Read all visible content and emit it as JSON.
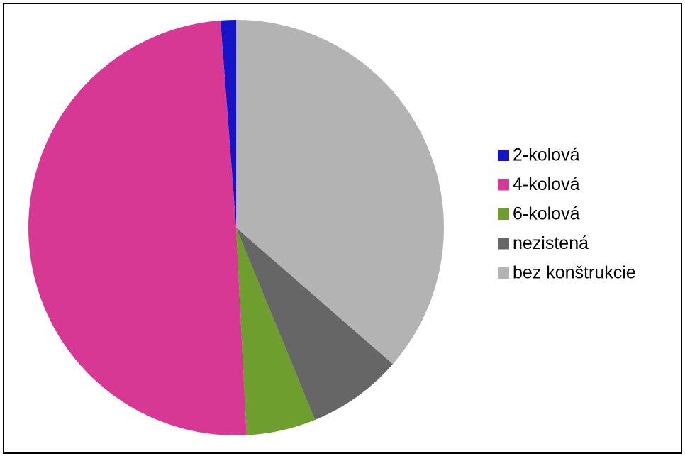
{
  "chart_data": {
    "type": "pie",
    "categories": [
      "2-kolová",
      "4-kolová",
      "6-kolová",
      "nezistená",
      "bez konštrukcie"
    ],
    "values": [
      1.2,
      49.6,
      5.4,
      7.4,
      36.4
    ],
    "colors": [
      "#1414c8",
      "#d63894",
      "#6e9e2e",
      "#666666",
      "#b3b3b3"
    ],
    "legend": "right"
  }
}
